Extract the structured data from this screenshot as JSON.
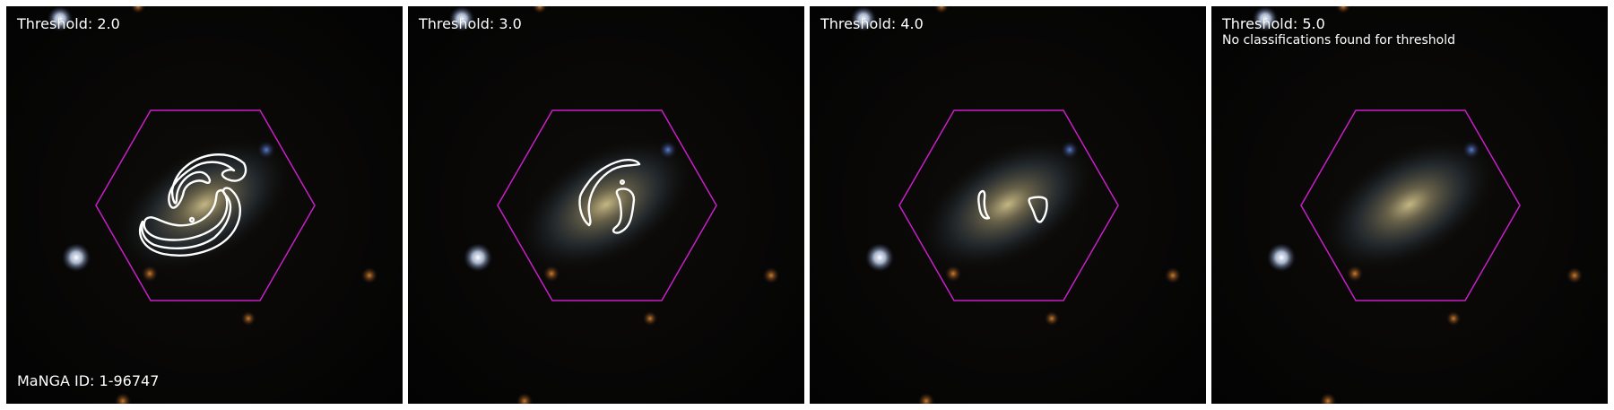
{
  "figure": {
    "manga_id": "MaNGA ID: 1-96747",
    "hexagon_color": "#c81ec8",
    "contour_color": "#ffffff",
    "panels": [
      {
        "threshold_label": "Threshold: 2.0",
        "note": ""
      },
      {
        "threshold_label": "Threshold: 3.0",
        "note": ""
      },
      {
        "threshold_label": "Threshold: 4.0",
        "note": ""
      },
      {
        "threshold_label": "Threshold: 5.0",
        "note": "No classifications found for threshold"
      }
    ]
  }
}
